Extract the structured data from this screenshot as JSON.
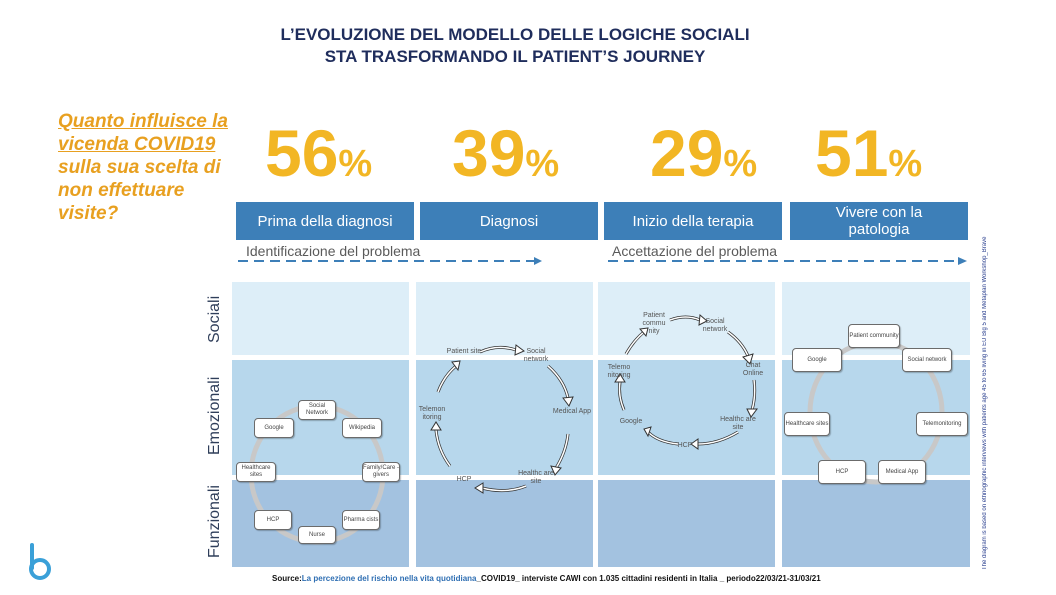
{
  "title": {
    "line1": "L’EVOLUZIONE DEL MODELLO DELLE LOGICHE SOCIALI",
    "line2": "STA TRASFORMANDO IL PATIENT’S JOURNEY"
  },
  "question": {
    "line1": "Quanto influisce la",
    "line2": "vicenda COVID19",
    "line3": "sulla sua scelta di",
    "line4": "non effettuare",
    "line5": "visite?"
  },
  "stats": [
    {
      "value": "56",
      "unit": "%"
    },
    {
      "value": "39",
      "unit": "%"
    },
    {
      "value": "29",
      "unit": "%"
    },
    {
      "value": "51",
      "unit": "%"
    }
  ],
  "phases": [
    {
      "label": "Prima della diagnosi"
    },
    {
      "label": "Diagnosi"
    },
    {
      "label": "Inizio della terapia"
    },
    {
      "label": "Vivere con la patologia"
    }
  ],
  "phase_groups": {
    "left": "Identificazione del problema",
    "right": "Accettazione del problema"
  },
  "rows": {
    "social": "Sociali",
    "emotional": "Emozionali",
    "functional": "Funzionali"
  },
  "colors": {
    "phase_blue": "#3d7fb8",
    "pct_yellow": "#f2b624",
    "question_orange": "#e8a020",
    "title_navy": "#1f2d5c",
    "band_social": "#ddeef8",
    "band_emotional": "#b7d7ec",
    "band_functional": "#a3c2e0"
  },
  "diagrams": {
    "col1": [
      "Social Network",
      "Wikipedia",
      "Family/Care -givers",
      "Pharma cists",
      "Nurse",
      "HCP",
      "Healthcare sites",
      "Google"
    ],
    "col2": [
      "Patient site",
      "Social network",
      "Medical App",
      "Healthc are site",
      "HCP",
      "Telemon itoring"
    ],
    "col3": [
      "Patient commu nity",
      "Social network",
      "Chat Online",
      "Healthc are site",
      "HCP",
      "Google",
      "Telemo nitoring"
    ],
    "col4": [
      "Patient community",
      "Social network",
      "Telemonitoring",
      "Medical App",
      "HCP",
      "Healthcare sites",
      "Google"
    ]
  },
  "source": {
    "prefix": "Source:",
    "link": "La percezione del rischio nella vita quotidiana",
    "rest": "_COVID19_ interviste CAWI con 1.035 cittadini residenti in Italia _ periodo",
    "dates": "22/03/21-31/03/21"
  },
  "side_note": "The diagram is based on ethnographic interviews with patients age 45 to 65 living in EU Big 5 and Metaplan Workshop_Brave"
}
